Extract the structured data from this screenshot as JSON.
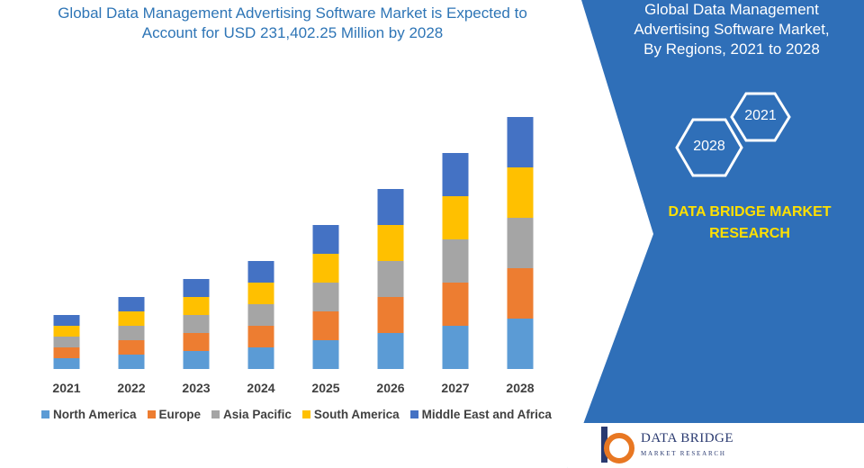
{
  "header": {
    "title_line1": "Global Data Management Advertising Software Market is Expected to",
    "title_line2": "Account for USD 231,402.25 Million by 2028"
  },
  "side_panel": {
    "title_line1": "Global Data Management",
    "title_line2": "Advertising Software Market,",
    "title_line3": "By Regions, 2021 to 2028",
    "hex_start": "2021",
    "hex_end": "2028",
    "brand_line1": "DATA BRIDGE MARKET",
    "brand_line2": "RESEARCH",
    "colors": {
      "panel": "#2F6FB8",
      "accent": "#FFE000"
    }
  },
  "logo": {
    "name": "DATA BRIDGE",
    "tagline": "MARKET RESEARCH"
  },
  "chart_data": {
    "type": "bar",
    "stacked": true,
    "categories": [
      "2021",
      "2022",
      "2023",
      "2024",
      "2025",
      "2026",
      "2027",
      "2028"
    ],
    "series": [
      {
        "name": "North America",
        "color": "#5B9BD5",
        "values": [
          12,
          16,
          20,
          24,
          32,
          40,
          48,
          56
        ]
      },
      {
        "name": "Europe",
        "color": "#ED7D31",
        "values": [
          12,
          16,
          20,
          24,
          32,
          40,
          48,
          56
        ]
      },
      {
        "name": "Asia Pacific",
        "color": "#A5A5A5",
        "values": [
          12,
          16,
          20,
          24,
          32,
          40,
          48,
          56
        ]
      },
      {
        "name": "South America",
        "color": "#FFC000",
        "values": [
          12,
          16,
          20,
          24,
          32,
          40,
          48,
          56
        ]
      },
      {
        "name": "Middle East and Africa",
        "color": "#4472C4",
        "values": [
          12,
          16,
          20,
          24,
          32,
          40,
          48,
          56
        ]
      }
    ],
    "ylim": [
      0,
      300
    ],
    "grid": false,
    "legend": "bottom"
  }
}
